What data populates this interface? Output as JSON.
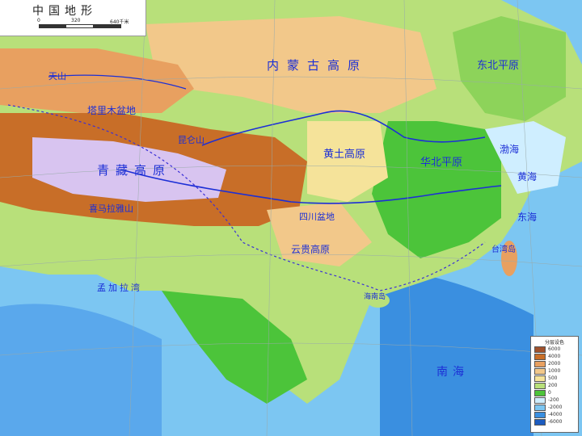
{
  "map": {
    "title": "中国地形",
    "scale": {
      "zero": "0",
      "mid": "320",
      "end": "640千米"
    },
    "labels": {
      "taklamakan": "塔里木盆地",
      "qinghai_tibet": "青藏高原",
      "inner_mongolia": "内蒙古高原",
      "loess": "黄土高原",
      "sichuan": "四川盆地",
      "yunnan_guizhou": "云贵高原",
      "northeast_plain": "东北平原",
      "north_china_plain": "华北平原",
      "bohai": "渤海",
      "yellow_sea": "黄海",
      "east_china_sea": "东海",
      "south_china_sea": "南海",
      "taiwan": "台湾岛",
      "hainan": "海南岛",
      "kunlun": "昆仑山",
      "tianshan": "天山",
      "himalaya": "喜马拉雅山",
      "bay_of_bengal": "孟加拉湾"
    },
    "legend": {
      "title": "分层设色",
      "items": [
        {
          "value": "6000",
          "color": "#a0522d"
        },
        {
          "value": "4000",
          "color": "#c86e28"
        },
        {
          "value": "2000",
          "color": "#e8a060"
        },
        {
          "value": "1000",
          "color": "#f2c88a"
        },
        {
          "value": "500",
          "color": "#f5e39a"
        },
        {
          "value": "200",
          "color": "#b8e07a"
        },
        {
          "value": "0",
          "color": "#4cc43a"
        },
        {
          "value": "-200",
          "color": "#cfeeff"
        },
        {
          "value": "-2000",
          "color": "#7cc6f2"
        },
        {
          "value": "-4000",
          "color": "#3a8fe0"
        },
        {
          "value": "-6000",
          "color": "#1c5cc0"
        }
      ]
    }
  }
}
